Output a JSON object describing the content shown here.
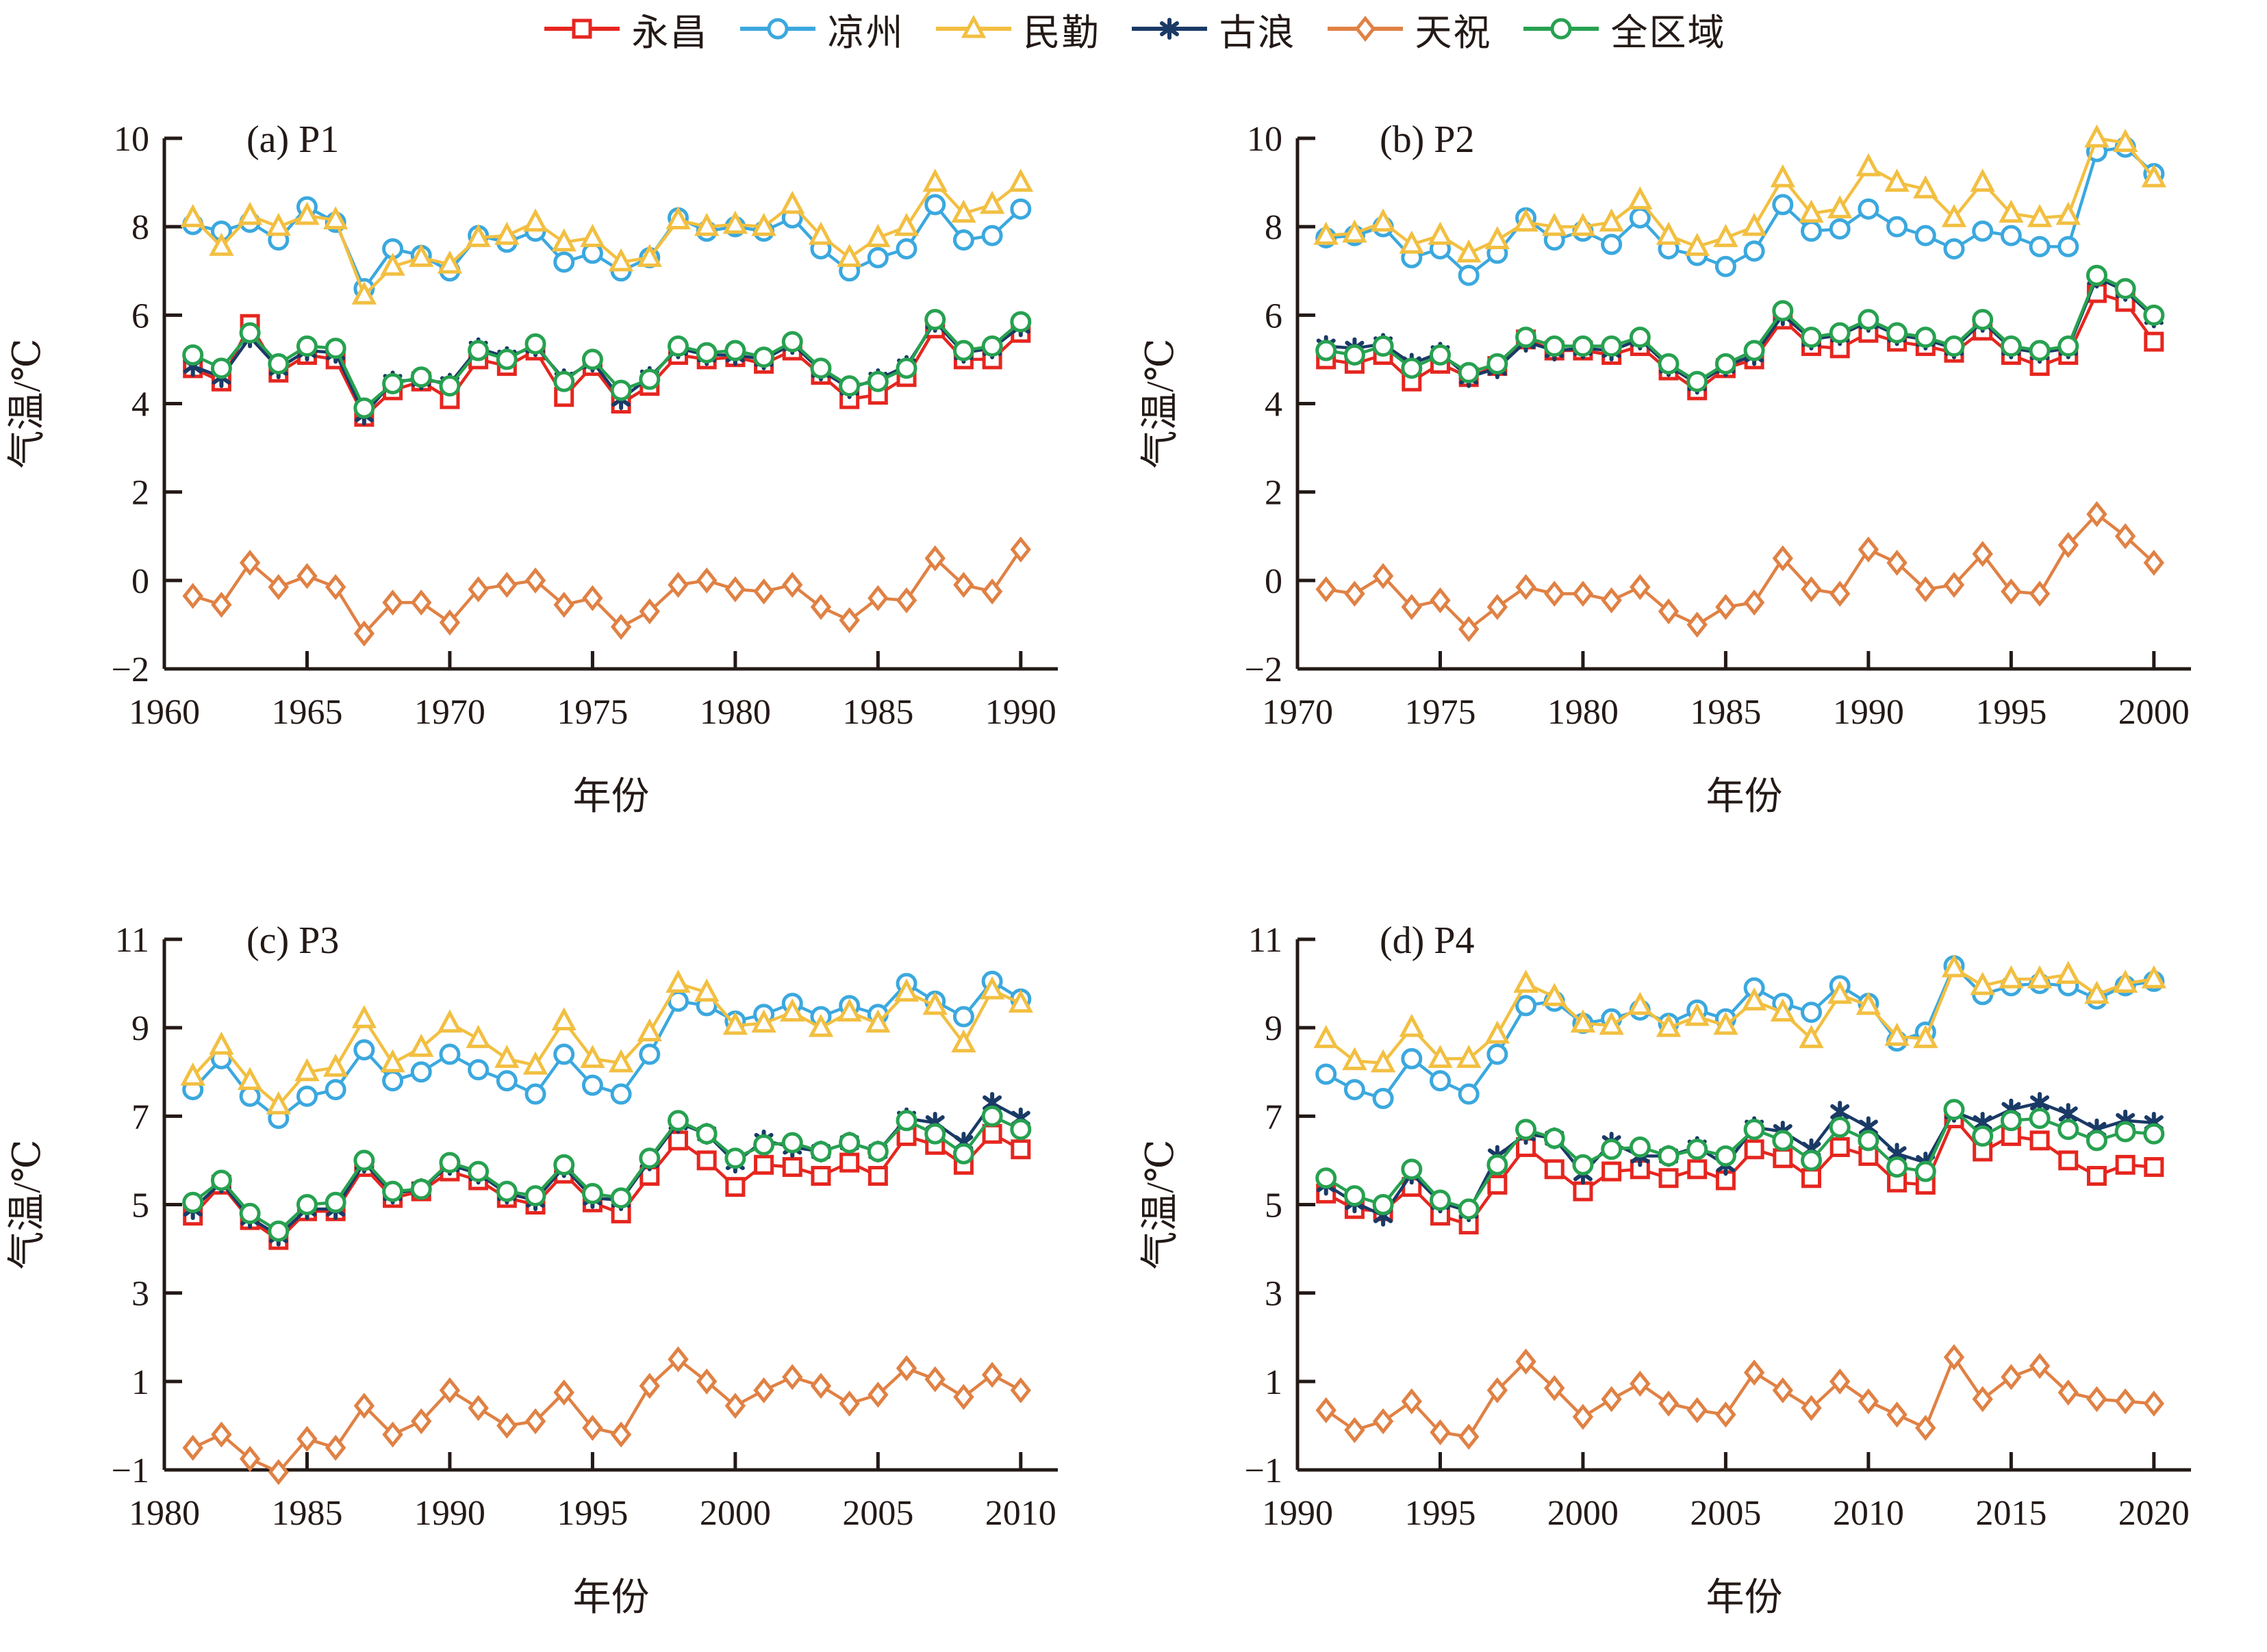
{
  "figure": {
    "y_axis_title": "气温/℃",
    "x_axis_title": "年份",
    "marker_fill": "#ffffff",
    "axis_color": "#231916"
  },
  "legend": {
    "items": [
      {
        "label": "永昌",
        "key": "yongchang",
        "marker": "square",
        "color": "#e5261f"
      },
      {
        "label": "凉州",
        "key": "liangzhou",
        "marker": "circle",
        "color": "#3ba8de"
      },
      {
        "label": "民勤",
        "key": "minqin",
        "marker": "triangle",
        "color": "#f2bf41"
      },
      {
        "label": "古浪",
        "key": "gulang",
        "marker": "asterisk",
        "color": "#1a3a66"
      },
      {
        "label": "天祝",
        "key": "tianzhu",
        "marker": "diamond",
        "color": "#e08144"
      },
      {
        "label": "全区域",
        "key": "quanquyu",
        "marker": "circle",
        "color": "#27a150"
      }
    ]
  },
  "chart_data": [
    {
      "type": "line",
      "id": "a",
      "title": "(a) P1",
      "xlabel": "年份",
      "ylabel": "气温/℃",
      "xlim": [
        1960,
        1991.3
      ],
      "xticks": [
        1960,
        1965,
        1970,
        1975,
        1980,
        1985,
        1990
      ],
      "ylim": [
        -2,
        10
      ],
      "yticks": [
        -2,
        0,
        2,
        4,
        6,
        8,
        10
      ],
      "x": [
        1961,
        1962,
        1963,
        1964,
        1965,
        1966,
        1967,
        1968,
        1969,
        1970,
        1971,
        1972,
        1973,
        1974,
        1975,
        1976,
        1977,
        1978,
        1979,
        1980,
        1981,
        1982,
        1983,
        1984,
        1985,
        1986,
        1987,
        1988,
        1989,
        1990
      ],
      "series": [
        {
          "key": "yongchang",
          "name": "永昌",
          "values": [
            4.8,
            4.5,
            5.8,
            4.7,
            5.1,
            5.0,
            3.7,
            4.3,
            4.5,
            4.1,
            5.0,
            4.85,
            5.2,
            4.15,
            4.85,
            4.0,
            4.4,
            5.1,
            5.0,
            5.05,
            4.9,
            5.2,
            4.65,
            4.1,
            4.2,
            4.6,
            5.7,
            5.0,
            5.0,
            5.6
          ]
        },
        {
          "key": "liangzhou",
          "name": "凉州",
          "values": [
            8.05,
            7.9,
            8.1,
            7.7,
            8.45,
            8.1,
            6.6,
            7.5,
            7.35,
            7.0,
            7.8,
            7.65,
            7.9,
            7.2,
            7.4,
            7.0,
            7.3,
            8.2,
            7.9,
            8.0,
            7.9,
            8.2,
            7.5,
            7.0,
            7.3,
            7.5,
            8.5,
            7.7,
            7.8,
            8.4
          ]
        },
        {
          "key": "minqin",
          "name": "民勤",
          "values": [
            8.2,
            7.55,
            8.25,
            8.0,
            8.25,
            8.15,
            6.45,
            7.1,
            7.3,
            7.15,
            7.75,
            7.8,
            8.1,
            7.65,
            7.75,
            7.2,
            7.3,
            8.15,
            8.0,
            8.05,
            8.0,
            8.5,
            7.8,
            7.3,
            7.75,
            8.0,
            9.0,
            8.3,
            8.5,
            9.0
          ]
        },
        {
          "key": "gulang",
          "name": "古浪",
          "values": [
            4.85,
            4.6,
            5.5,
            4.8,
            5.2,
            5.15,
            3.75,
            4.5,
            4.55,
            4.45,
            5.25,
            5.05,
            5.3,
            4.55,
            4.95,
            4.1,
            4.6,
            5.25,
            5.1,
            5.1,
            5.0,
            5.35,
            4.75,
            4.35,
            4.55,
            4.85,
            5.85,
            5.15,
            5.25,
            5.75
          ]
        },
        {
          "key": "tianzhu",
          "name": "天祝",
          "values": [
            -0.35,
            -0.55,
            0.4,
            -0.15,
            0.1,
            -0.15,
            -1.2,
            -0.5,
            -0.5,
            -0.95,
            -0.2,
            -0.1,
            0.0,
            -0.55,
            -0.4,
            -1.05,
            -0.7,
            -0.1,
            0.0,
            -0.2,
            -0.25,
            -0.1,
            -0.6,
            -0.9,
            -0.4,
            -0.45,
            0.5,
            -0.1,
            -0.25,
            0.7
          ]
        },
        {
          "key": "quanquyu",
          "name": "全区域",
          "values": [
            5.1,
            4.8,
            5.6,
            4.9,
            5.3,
            5.25,
            3.9,
            4.45,
            4.6,
            4.4,
            5.2,
            5.0,
            5.35,
            4.5,
            5.0,
            4.3,
            4.55,
            5.3,
            5.15,
            5.2,
            5.05,
            5.4,
            4.8,
            4.4,
            4.5,
            4.8,
            5.9,
            5.2,
            5.3,
            5.85
          ]
        }
      ]
    },
    {
      "type": "line",
      "id": "b",
      "title": "(b) P2",
      "xlabel": "年份",
      "ylabel": "气温/℃",
      "xlim": [
        1970,
        2001.3
      ],
      "xticks": [
        1970,
        1975,
        1980,
        1985,
        1990,
        1995,
        2000
      ],
      "ylim": [
        -2,
        10
      ],
      "yticks": [
        -2,
        0,
        2,
        4,
        6,
        8,
        10
      ],
      "x": [
        1971,
        1972,
        1973,
        1974,
        1975,
        1976,
        1977,
        1978,
        1979,
        1980,
        1981,
        1982,
        1983,
        1984,
        1985,
        1986,
        1987,
        1988,
        1989,
        1990,
        1991,
        1992,
        1993,
        1994,
        1995,
        1996,
        1997,
        1998,
        1999,
        2000
      ],
      "series": [
        {
          "key": "yongchang",
          "name": "永昌",
          "values": [
            5.0,
            4.9,
            5.1,
            4.5,
            4.9,
            4.6,
            4.85,
            5.45,
            5.2,
            5.2,
            5.1,
            5.3,
            4.75,
            4.3,
            4.8,
            5.0,
            5.9,
            5.3,
            5.25,
            5.6,
            5.4,
            5.3,
            5.15,
            5.65,
            5.1,
            4.85,
            5.1,
            6.5,
            6.3,
            5.4
          ]
        },
        {
          "key": "liangzhou",
          "name": "凉州",
          "values": [
            7.75,
            7.8,
            8.0,
            7.3,
            7.5,
            6.9,
            7.4,
            8.2,
            7.7,
            7.9,
            7.6,
            8.2,
            7.5,
            7.35,
            7.1,
            7.45,
            8.5,
            7.9,
            7.95,
            8.4,
            8.0,
            7.8,
            7.5,
            7.9,
            7.8,
            7.55,
            7.55,
            9.7,
            9.8,
            9.2
          ]
        },
        {
          "key": "minqin",
          "name": "民勤",
          "values": [
            7.8,
            7.85,
            8.1,
            7.6,
            7.8,
            7.4,
            7.7,
            8.1,
            8.0,
            8.0,
            8.1,
            8.6,
            7.8,
            7.55,
            7.75,
            8.0,
            9.1,
            8.3,
            8.4,
            9.35,
            9.0,
            8.85,
            8.2,
            9.0,
            8.3,
            8.2,
            8.25,
            10.0,
            9.9,
            9.1
          ]
        },
        {
          "key": "gulang",
          "name": "古浪",
          "values": [
            5.3,
            5.25,
            5.35,
            4.9,
            5.15,
            4.6,
            4.8,
            5.4,
            5.2,
            5.25,
            5.2,
            5.45,
            4.85,
            4.45,
            4.85,
            5.1,
            6.0,
            5.45,
            5.55,
            5.85,
            5.55,
            5.45,
            5.25,
            5.85,
            5.25,
            5.15,
            5.25,
            6.85,
            6.55,
            5.95
          ]
        },
        {
          "key": "tianzhu",
          "name": "天祝",
          "values": [
            -0.2,
            -0.3,
            0.1,
            -0.6,
            -0.45,
            -1.1,
            -0.6,
            -0.15,
            -0.3,
            -0.3,
            -0.45,
            -0.15,
            -0.7,
            -1.0,
            -0.6,
            -0.5,
            0.5,
            -0.2,
            -0.3,
            0.7,
            0.4,
            -0.2,
            -0.1,
            0.6,
            -0.25,
            -0.3,
            0.8,
            1.5,
            1.0,
            0.4
          ]
        },
        {
          "key": "quanquyu",
          "name": "全区域",
          "values": [
            5.2,
            5.1,
            5.3,
            4.8,
            5.1,
            4.7,
            4.9,
            5.5,
            5.3,
            5.3,
            5.3,
            5.5,
            4.9,
            4.5,
            4.9,
            5.2,
            6.1,
            5.5,
            5.6,
            5.9,
            5.6,
            5.5,
            5.3,
            5.9,
            5.3,
            5.2,
            5.3,
            6.9,
            6.6,
            6.0
          ]
        }
      ]
    },
    {
      "type": "line",
      "id": "c",
      "title": "(c) P3",
      "xlabel": "年份",
      "ylabel": "气温/℃",
      "xlim": [
        1980,
        2011.3
      ],
      "xticks": [
        1980,
        1985,
        1990,
        1995,
        2000,
        2005,
        2010
      ],
      "ylim": [
        -1,
        11
      ],
      "yticks": [
        -1,
        1,
        3,
        5,
        7,
        9,
        11
      ],
      "x": [
        1981,
        1982,
        1983,
        1984,
        1985,
        1986,
        1987,
        1988,
        1989,
        1990,
        1991,
        1992,
        1993,
        1994,
        1995,
        1996,
        1997,
        1998,
        1999,
        2000,
        2001,
        2002,
        2003,
        2004,
        2005,
        2006,
        2007,
        2008,
        2009,
        2010
      ],
      "series": [
        {
          "key": "yongchang",
          "name": "永昌",
          "values": [
            4.75,
            5.45,
            4.65,
            4.2,
            4.85,
            4.85,
            5.85,
            5.15,
            5.3,
            5.75,
            5.55,
            5.15,
            5.0,
            5.7,
            5.05,
            4.8,
            5.65,
            6.45,
            6.0,
            5.4,
            5.9,
            5.85,
            5.65,
            5.95,
            5.65,
            6.55,
            6.35,
            5.9,
            6.6,
            6.25
          ]
        },
        {
          "key": "liangzhou",
          "name": "凉州",
          "values": [
            7.6,
            8.3,
            7.45,
            6.95,
            7.45,
            7.6,
            8.5,
            7.8,
            8.0,
            8.4,
            8.05,
            7.8,
            7.5,
            8.4,
            7.7,
            7.5,
            8.4,
            9.6,
            9.5,
            9.15,
            9.3,
            9.55,
            9.25,
            9.5,
            9.3,
            10.0,
            9.6,
            9.25,
            10.05,
            9.65
          ]
        },
        {
          "key": "minqin",
          "name": "民勤",
          "values": [
            7.9,
            8.6,
            7.8,
            7.25,
            8.0,
            8.1,
            9.2,
            8.2,
            8.55,
            9.1,
            8.75,
            8.3,
            8.15,
            9.15,
            8.3,
            8.2,
            8.9,
            10.0,
            9.8,
            9.05,
            9.1,
            9.35,
            9.0,
            9.35,
            9.1,
            9.8,
            9.5,
            8.65,
            9.85,
            9.55
          ]
        },
        {
          "key": "gulang",
          "name": "古浪",
          "values": [
            4.9,
            5.5,
            4.7,
            4.3,
            4.9,
            4.9,
            5.95,
            5.25,
            5.35,
            5.9,
            5.7,
            5.25,
            5.1,
            5.85,
            5.15,
            5.1,
            6.0,
            6.85,
            6.6,
            5.95,
            6.45,
            6.3,
            6.2,
            6.4,
            6.2,
            6.95,
            6.85,
            6.4,
            7.3,
            6.95
          ]
        },
        {
          "key": "tianzhu",
          "name": "天祝",
          "values": [
            -0.5,
            -0.2,
            -0.75,
            -1.05,
            -0.3,
            -0.5,
            0.45,
            -0.2,
            0.1,
            0.8,
            0.4,
            0.0,
            0.1,
            0.75,
            -0.05,
            -0.2,
            0.9,
            1.5,
            1.0,
            0.45,
            0.8,
            1.1,
            0.9,
            0.5,
            0.7,
            1.3,
            1.05,
            0.65,
            1.15,
            0.8
          ]
        },
        {
          "key": "quanquyu",
          "name": "全区域",
          "values": [
            5.05,
            5.55,
            4.8,
            4.4,
            5.0,
            5.05,
            6.0,
            5.3,
            5.35,
            5.95,
            5.75,
            5.3,
            5.2,
            5.9,
            5.25,
            5.15,
            6.05,
            6.9,
            6.6,
            6.05,
            6.35,
            6.4,
            6.2,
            6.4,
            6.2,
            6.9,
            6.6,
            6.15,
            7.0,
            6.7
          ]
        }
      ]
    },
    {
      "type": "line",
      "id": "d",
      "title": "(d) P4",
      "xlabel": "年份",
      "ylabel": "气温/℃",
      "xlim": [
        1990,
        2021.3
      ],
      "xticks": [
        1990,
        1995,
        2000,
        2005,
        2010,
        2015,
        2020
      ],
      "ylim": [
        -1,
        11
      ],
      "yticks": [
        -1,
        1,
        3,
        5,
        7,
        9,
        11
      ],
      "x": [
        1991,
        1992,
        1993,
        1994,
        1995,
        1996,
        1997,
        1998,
        1999,
        2000,
        2001,
        2002,
        2003,
        2004,
        2005,
        2006,
        2007,
        2008,
        2009,
        2010,
        2011,
        2012,
        2013,
        2014,
        2015,
        2016,
        2017,
        2018,
        2019,
        2020
      ],
      "series": [
        {
          "key": "yongchang",
          "name": "永昌",
          "values": [
            5.25,
            4.9,
            4.85,
            5.4,
            4.75,
            4.55,
            5.45,
            6.3,
            5.8,
            5.3,
            5.75,
            5.8,
            5.6,
            5.8,
            5.55,
            6.25,
            6.05,
            5.6,
            6.3,
            6.1,
            5.5,
            5.45,
            6.95,
            6.2,
            6.55,
            6.45,
            6.0,
            5.65,
            5.9,
            5.85
          ]
        },
        {
          "key": "liangzhou",
          "name": "凉州",
          "values": [
            7.95,
            7.6,
            7.4,
            8.3,
            7.8,
            7.5,
            8.4,
            9.5,
            9.6,
            9.1,
            9.2,
            9.4,
            9.1,
            9.4,
            9.2,
            9.9,
            9.55,
            9.35,
            9.95,
            9.55,
            8.7,
            8.9,
            10.4,
            9.75,
            9.95,
            10.0,
            9.95,
            9.65,
            9.95,
            10.05
          ]
        },
        {
          "key": "minqin",
          "name": "民勤",
          "values": [
            8.75,
            8.25,
            8.2,
            9.0,
            8.3,
            8.3,
            8.85,
            10.0,
            9.7,
            9.1,
            9.05,
            9.5,
            9.0,
            9.25,
            9.05,
            9.6,
            9.35,
            8.75,
            9.75,
            9.5,
            8.8,
            8.75,
            10.35,
            9.95,
            10.1,
            10.1,
            10.2,
            9.75,
            10.0,
            10.1
          ]
        },
        {
          "key": "gulang",
          "name": "古浪",
          "values": [
            5.45,
            5.05,
            4.75,
            5.7,
            5.05,
            4.85,
            6.1,
            6.6,
            6.5,
            5.7,
            6.4,
            6.1,
            6.1,
            6.3,
            5.9,
            6.75,
            6.65,
            6.25,
            7.1,
            6.75,
            6.15,
            5.95,
            7.1,
            6.85,
            7.15,
            7.3,
            7.05,
            6.7,
            6.9,
            6.85
          ]
        },
        {
          "key": "tianzhu",
          "name": "天祝",
          "values": [
            0.35,
            -0.1,
            0.1,
            0.55,
            -0.15,
            -0.25,
            0.8,
            1.45,
            0.85,
            0.2,
            0.6,
            0.95,
            0.5,
            0.35,
            0.25,
            1.2,
            0.8,
            0.4,
            1.0,
            0.55,
            0.25,
            -0.05,
            1.55,
            0.6,
            1.1,
            1.35,
            0.75,
            0.6,
            0.55,
            0.5
          ]
        },
        {
          "key": "quanquyu",
          "name": "全区域",
          "values": [
            5.6,
            5.2,
            5.0,
            5.8,
            5.1,
            4.9,
            5.9,
            6.7,
            6.5,
            5.9,
            6.25,
            6.3,
            6.1,
            6.25,
            6.1,
            6.7,
            6.45,
            6.0,
            6.75,
            6.45,
            5.85,
            5.75,
            7.15,
            6.55,
            6.9,
            6.95,
            6.7,
            6.45,
            6.65,
            6.6
          ]
        }
      ]
    }
  ]
}
